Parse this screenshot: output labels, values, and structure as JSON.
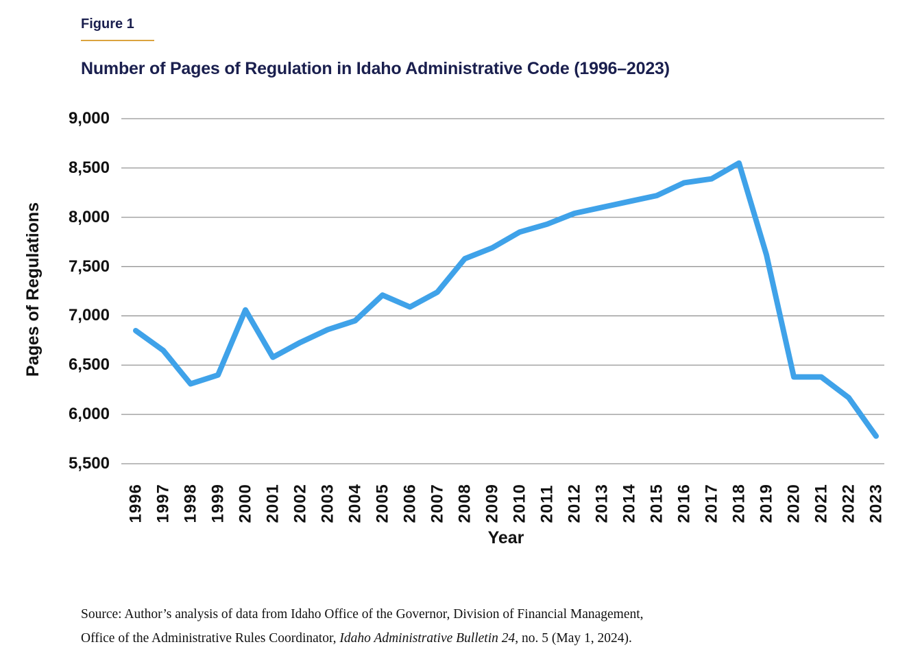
{
  "figure": {
    "label": "Figure 1",
    "title": "Number of Pages of Regulation in Idaho Administrative Code (1996–2023)"
  },
  "chart_data": {
    "type": "line",
    "title": "Number of Pages of Regulation in Idaho Administrative Code (1996–2023)",
    "xlabel": "Year",
    "ylabel": "Pages of Regulations",
    "x": [
      "1996",
      "1997",
      "1998",
      "1999",
      "2000",
      "2001",
      "2002",
      "2003",
      "2004",
      "2005",
      "2006",
      "2007",
      "2008",
      "2009",
      "2010",
      "2011",
      "2012",
      "2013",
      "2014",
      "2015",
      "2016",
      "2017",
      "2018",
      "2019",
      "2020",
      "2021",
      "2022",
      "2023"
    ],
    "series": [
      {
        "name": "Pages of Regulations",
        "values": [
          6850,
          6650,
          6310,
          6400,
          7060,
          6580,
          6730,
          6860,
          6950,
          7210,
          7090,
          7240,
          7580,
          7690,
          7850,
          7930,
          8040,
          8100,
          8160,
          8220,
          8350,
          8390,
          8550,
          7620,
          6380,
          6380,
          6170,
          5780
        ]
      }
    ],
    "ylim": [
      5500,
      9000
    ],
    "ytick_values": [
      5500,
      6000,
      6500,
      7000,
      7500,
      8000,
      8500,
      9000
    ],
    "ytick_labels": [
      "5,500",
      "6,000",
      "6,500",
      "7,000",
      "7,500",
      "8,000",
      "8,500",
      "9,000"
    ],
    "grid": "horizontal-only",
    "legend": "none",
    "line_color": "#3FA2E9",
    "gridline_color": "#949494"
  },
  "source": {
    "line1": "Source: Author’s analysis of data from Idaho Office of the Governor, Division of Financial Management,",
    "line2_regular_start": "Office of the Administrative Rules Coordinator, ",
    "line2_italic": "Idaho Administrative Bulletin 24",
    "line2_regular_end": ", no. 5 (May 1, 2024)."
  }
}
